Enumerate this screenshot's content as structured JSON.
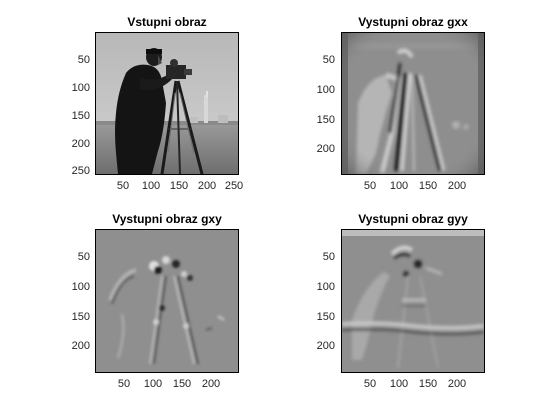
{
  "panels": [
    {
      "title": "Vstupni obraz",
      "x_ticks": [
        "50",
        "100",
        "150",
        "200",
        "250"
      ],
      "y_ticks": [
        "50",
        "100",
        "150",
        "200",
        "250"
      ]
    },
    {
      "title": "Vystupni obraz gxx",
      "x_ticks": [
        "50",
        "100",
        "150",
        "200"
      ],
      "y_ticks": [
        "50",
        "100",
        "150",
        "200"
      ]
    },
    {
      "title": "Vystupni obraz gxy",
      "x_ticks": [
        "50",
        "100",
        "150",
        "200"
      ],
      "y_ticks": [
        "50",
        "100",
        "150",
        "200"
      ]
    },
    {
      "title": "Vystupni obraz gyy",
      "x_ticks": [
        "50",
        "100",
        "150",
        "200"
      ],
      "y_ticks": [
        "50",
        "100",
        "150",
        "200"
      ]
    }
  ]
}
